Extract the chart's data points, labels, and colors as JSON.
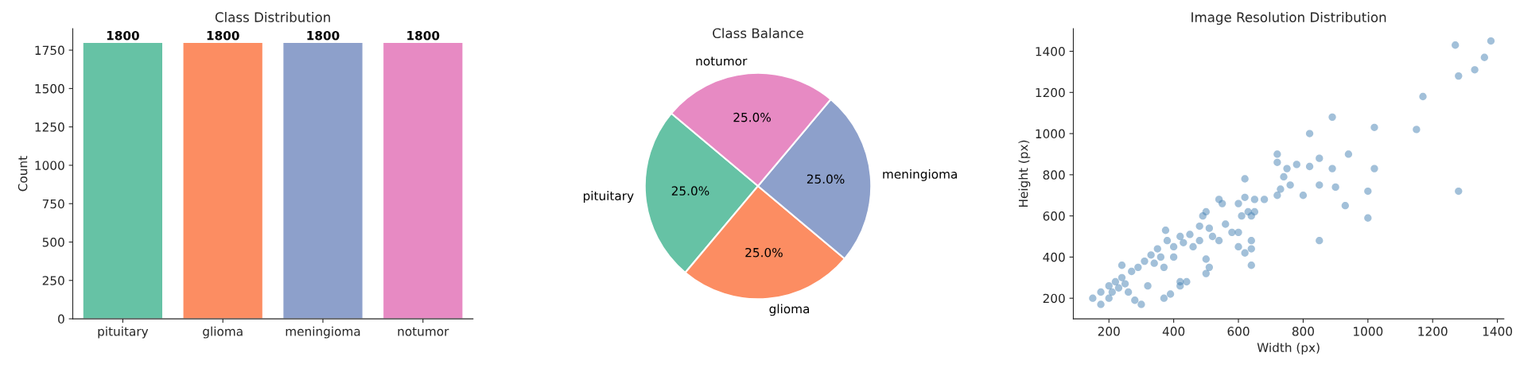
{
  "chart_data": [
    {
      "type": "bar",
      "title": "Class Distribution",
      "ylabel": "Count",
      "categories": [
        "pituitary",
        "glioma",
        "meningioma",
        "notumor"
      ],
      "values": [
        1800,
        1800,
        1800,
        1800
      ],
      "colors": [
        "#66c2a5",
        "#fc8d62",
        "#8da0cb",
        "#e78ac3"
      ],
      "ylim": [
        0,
        1890
      ],
      "yticks": [
        0,
        250,
        500,
        750,
        1000,
        1250,
        1500,
        1750
      ],
      "data_labels": true,
      "grid": false,
      "legend": false
    },
    {
      "type": "pie",
      "title": "Class Balance",
      "categories": [
        "pituitary",
        "glioma",
        "meningioma",
        "notumor"
      ],
      "values": [
        25,
        25,
        25,
        25
      ],
      "value_labels": [
        "25.0%",
        "25.0%",
        "25.0%",
        "25.0%"
      ],
      "colors": [
        "#66c2a5",
        "#fc8d62",
        "#8da0cb",
        "#e78ac3"
      ],
      "legend": false
    },
    {
      "type": "scatter",
      "title": "Image Resolution Distribution",
      "xlabel": "Width (px)",
      "ylabel": "Height (px)",
      "marker": "circle",
      "grid": false,
      "legend": false,
      "xlim": [
        90,
        1420
      ],
      "ylim": [
        100,
        1510
      ],
      "xticks": [
        200,
        400,
        600,
        800,
        1000,
        1200,
        1400
      ],
      "yticks": [
        200,
        400,
        600,
        800,
        1000,
        1200,
        1400
      ],
      "series": [
        {
          "color": "#4682b4",
          "x": [
            150,
            175,
            175,
            200,
            200,
            210,
            220,
            230,
            240,
            250,
            260,
            270,
            290,
            300,
            310,
            320,
            330,
            340,
            350,
            360,
            370,
            375,
            380,
            400,
            400,
            420,
            430,
            450,
            460,
            480,
            480,
            490,
            500,
            510,
            520,
            540,
            550,
            560,
            580,
            600,
            610,
            630,
            640,
            650,
            240,
            420,
            440,
            420,
            500,
            500,
            510,
            370,
            390,
            280,
            540,
            600,
            600,
            620,
            640,
            640,
            640,
            620,
            620,
            650,
            680,
            720,
            730,
            720,
            720,
            740,
            750,
            760,
            780,
            800,
            820,
            820,
            850,
            850,
            850,
            890,
            890,
            900,
            930,
            940,
            1000,
            1000,
            1020,
            1020,
            1150,
            1170,
            1270,
            1280,
            1280,
            1330,
            1360,
            1380
          ],
          "values": [
            200,
            170,
            230,
            200,
            260,
            230,
            280,
            250,
            300,
            270,
            230,
            330,
            350,
            170,
            380,
            260,
            410,
            370,
            440,
            400,
            350,
            530,
            480,
            450,
            400,
            500,
            470,
            510,
            450,
            480,
            550,
            600,
            620,
            540,
            500,
            680,
            660,
            560,
            520,
            660,
            600,
            620,
            600,
            620,
            360,
            280,
            280,
            260,
            390,
            320,
            350,
            200,
            220,
            190,
            480,
            520,
            450,
            420,
            440,
            480,
            360,
            780,
            690,
            680,
            680,
            700,
            730,
            900,
            860,
            790,
            830,
            750,
            850,
            700,
            1000,
            840,
            880,
            750,
            480,
            1080,
            830,
            740,
            650,
            900,
            720,
            590,
            1030,
            830,
            1020,
            1180,
            1430,
            1280,
            720,
            1310,
            1370,
            1450
          ]
        }
      ]
    }
  ]
}
